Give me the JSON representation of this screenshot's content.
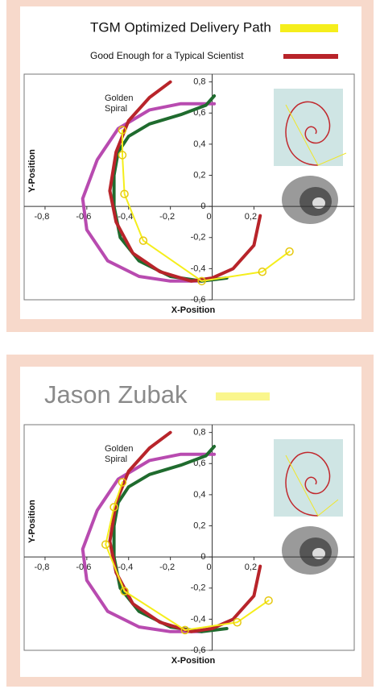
{
  "chart_data": [
    {
      "type": "line",
      "x_label": "X-Position",
      "y_label": "Y-Position",
      "annotation": [
        "Golden",
        "Spiral"
      ],
      "xlim": [
        -0.9,
        0.68
      ],
      "ylim": [
        -0.6,
        0.85
      ],
      "xticks": [
        {
          "value": -0.8,
          "label": "-0,8"
        },
        {
          "value": -0.6,
          "label": "-0,6"
        },
        {
          "value": -0.4,
          "label": "-0,4"
        },
        {
          "value": -0.2,
          "label": "-0,2"
        },
        0,
        {
          "value": 0.2,
          "label": "0,2"
        }
      ],
      "yticks": [
        {
          "value": -0.6,
          "label": "-0,6"
        },
        {
          "value": -0.4,
          "label": "-0,4"
        },
        {
          "value": -0.2,
          "label": "-0,2"
        },
        0,
        {
          "value": 0.2,
          "label": "0,2"
        },
        {
          "value": 0.4,
          "label": "0,4"
        },
        {
          "value": 0.6,
          "label": "0,6"
        },
        {
          "value": 0.8,
          "label": "0,8"
        }
      ],
      "series": [
        {
          "name": "TGM Optimized Delivery Path",
          "color": "#f5ee1c",
          "markers": true,
          "x": [
            -0.43,
            -0.43,
            -0.42,
            -0.33,
            -0.05,
            0.24,
            0.37
          ],
          "values": [
            0.49,
            0.33,
            0.08,
            -0.22,
            -0.48,
            -0.42,
            -0.29
          ]
        },
        {
          "name": "Good Enough for a Typical Scientist",
          "color": "#b8242a",
          "x": [
            0.23,
            0.2,
            0.1,
            0,
            -0.1,
            -0.25,
            -0.38,
            -0.46,
            -0.49,
            -0.46,
            -0.4,
            -0.3,
            -0.2
          ],
          "values": [
            -0.06,
            -0.25,
            -0.4,
            -0.46,
            -0.48,
            -0.42,
            -0.3,
            -0.1,
            0.1,
            0.35,
            0.55,
            0.7,
            0.8
          ]
        },
        {
          "color": "#1f6b2e",
          "x": [
            0.01,
            -0.03,
            -0.15,
            -0.3,
            -0.4,
            -0.45,
            -0.47,
            -0.47,
            -0.44,
            -0.35,
            -0.2,
            -0.05,
            0.07
          ],
          "values": [
            0.71,
            0.65,
            0.59,
            0.53,
            0.45,
            0.35,
            0.2,
            0,
            -0.2,
            -0.35,
            -0.45,
            -0.48,
            -0.46
          ]
        },
        {
          "color": "#b84bb0",
          "x": [
            0.01,
            -0.15,
            -0.3,
            -0.45,
            -0.55,
            -0.62,
            -0.6,
            -0.5,
            -0.35,
            -0.2,
            -0.05
          ],
          "values": [
            0.66,
            0.66,
            0.62,
            0.5,
            0.3,
            0.05,
            -0.15,
            -0.35,
            -0.45,
            -0.48,
            -0.48
          ]
        }
      ]
    },
    {
      "type": "line",
      "x_label": "X-Position",
      "y_label": "Y-Position",
      "annotation": [
        "Golden",
        "Spiral"
      ],
      "xlim": [
        -0.9,
        0.68
      ],
      "ylim": [
        -0.6,
        0.85
      ],
      "xticks": [
        {
          "value": -0.8,
          "label": "-0,8"
        },
        {
          "value": -0.6,
          "label": "-0,6"
        },
        {
          "value": -0.4,
          "label": "-0,4"
        },
        {
          "value": -0.2,
          "label": "-0,2"
        },
        0,
        {
          "value": 0.2,
          "label": "0,2"
        }
      ],
      "yticks": [
        {
          "value": -0.6,
          "label": "-0,6"
        },
        {
          "value": -0.4,
          "label": "-0,4"
        },
        {
          "value": -0.2,
          "label": "-0,2"
        },
        0,
        {
          "value": 0.2,
          "label": "0,2"
        },
        {
          "value": 0.4,
          "label": "0,4"
        },
        {
          "value": 0.6,
          "label": "0,6"
        },
        {
          "value": 0.8,
          "label": "0,8"
        }
      ],
      "series": [
        {
          "name": "Jason Zubak",
          "color": "#f5ee1c",
          "markers": true,
          "x": [
            -0.43,
            -0.47,
            -0.51,
            -0.42,
            -0.13,
            0.12,
            0.27
          ],
          "values": [
            0.48,
            0.32,
            0.08,
            -0.22,
            -0.47,
            -0.42,
            -0.28
          ]
        },
        {
          "color": "#b8242a",
          "x": [
            0.23,
            0.2,
            0.1,
            0,
            -0.1,
            -0.25,
            -0.38,
            -0.46,
            -0.49,
            -0.46,
            -0.4,
            -0.3,
            -0.2
          ],
          "values": [
            -0.06,
            -0.25,
            -0.4,
            -0.46,
            -0.48,
            -0.42,
            -0.3,
            -0.1,
            0.1,
            0.35,
            0.55,
            0.7,
            0.8
          ]
        },
        {
          "color": "#1f6b2e",
          "x": [
            0.01,
            -0.03,
            -0.15,
            -0.3,
            -0.4,
            -0.45,
            -0.47,
            -0.47,
            -0.44,
            -0.35,
            -0.2,
            -0.05,
            0.07
          ],
          "values": [
            0.71,
            0.65,
            0.59,
            0.53,
            0.45,
            0.35,
            0.2,
            0,
            -0.2,
            -0.35,
            -0.45,
            -0.48,
            -0.46
          ]
        },
        {
          "color": "#b84bb0",
          "x": [
            0.01,
            -0.15,
            -0.3,
            -0.45,
            -0.55,
            -0.62,
            -0.6,
            -0.5,
            -0.35,
            -0.2,
            -0.05
          ],
          "values": [
            0.66,
            0.66,
            0.62,
            0.5,
            0.3,
            0.05,
            -0.15,
            -0.35,
            -0.45,
            -0.48,
            -0.48
          ]
        }
      ]
    }
  ]
}
